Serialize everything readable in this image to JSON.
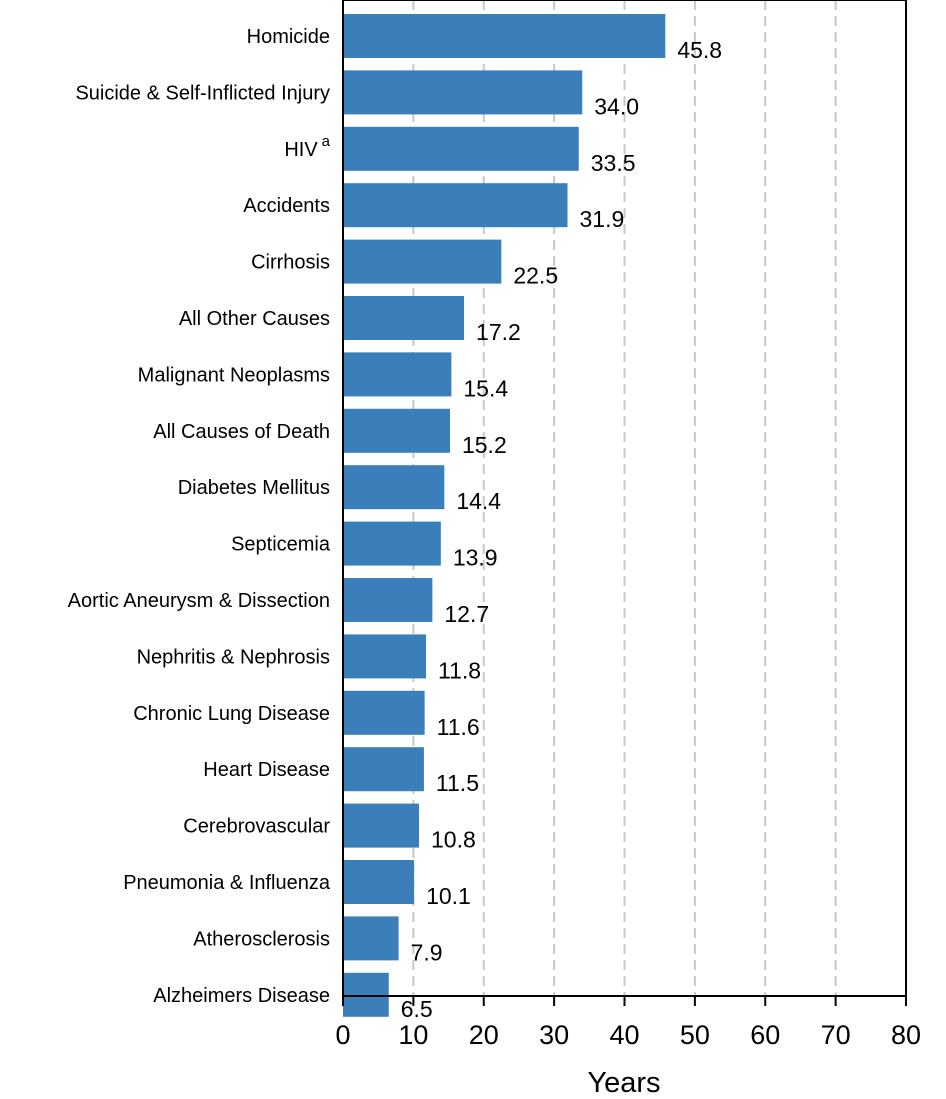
{
  "chart_data": {
    "type": "bar",
    "orientation": "horizontal",
    "categories": [
      "Homicide",
      "Suicide & Self-Inflicted Injury",
      "HIV",
      "Accidents",
      "Cirrhosis",
      "All Other Causes",
      "Malignant Neoplasms",
      "All Causes of Death",
      "Diabetes Mellitus",
      "Septicemia",
      "Aortic Aneurysm & Dissection",
      "Nephritis & Nephrosis",
      "Chronic Lung Disease",
      "Heart Disease",
      "Cerebrovascular",
      "Pneumonia & Influenza",
      "Atherosclerosis",
      "Alzheimers Disease"
    ],
    "category_superscripts": [
      "",
      "",
      "a",
      "",
      "",
      "",
      "",
      "",
      "",
      "",
      "",
      "",
      "",
      "",
      "",
      "",
      "",
      ""
    ],
    "values": [
      45.8,
      34.0,
      33.5,
      31.9,
      22.5,
      17.2,
      15.4,
      15.2,
      14.4,
      13.9,
      12.7,
      11.8,
      11.6,
      11.5,
      10.8,
      10.1,
      7.9,
      6.5
    ],
    "value_labels": [
      "45.8",
      "34.0",
      "33.5",
      "31.9",
      "22.5",
      "17.2",
      "15.4",
      "15.2",
      "14.4",
      "13.9",
      "12.7",
      "11.8",
      "11.6",
      "11.5",
      "10.8",
      "10.1",
      "7.9",
      "6.5"
    ],
    "xlabel": "Years",
    "ylabel": "",
    "title": "",
    "xlim": [
      0,
      80
    ],
    "xticks": [
      0,
      10,
      20,
      30,
      40,
      50,
      60,
      70,
      80
    ],
    "grid": "vertical dashed",
    "bar_color": "#3a7fba"
  }
}
